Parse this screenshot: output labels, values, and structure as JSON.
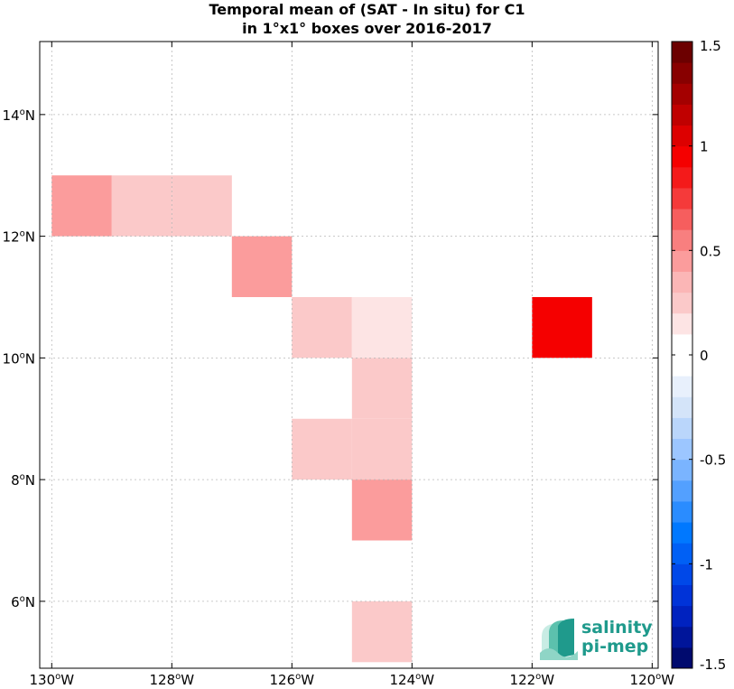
{
  "chart_data": {
    "type": "heatmap",
    "title_line1": "Temporal mean of (SAT - In situ) for C1",
    "title_line2": "in 1°x1° boxes over 2016-2017",
    "xlim": [
      -130.2,
      -119.9
    ],
    "ylim": [
      4.9,
      15.2
    ],
    "x_ticks": [
      {
        "value": -130,
        "deg": "130",
        "unit": "W"
      },
      {
        "value": -128,
        "deg": "128",
        "unit": "W"
      },
      {
        "value": -126,
        "deg": "126",
        "unit": "W"
      },
      {
        "value": -124,
        "deg": "124",
        "unit": "W"
      },
      {
        "value": -122,
        "deg": "122",
        "unit": "W"
      },
      {
        "value": -120,
        "deg": "120",
        "unit": "W"
      }
    ],
    "y_ticks": [
      {
        "value": 6,
        "deg": "6",
        "unit": "N"
      },
      {
        "value": 8,
        "deg": "8",
        "unit": "N"
      },
      {
        "value": 10,
        "deg": "10",
        "unit": "N"
      },
      {
        "value": 12,
        "deg": "12",
        "unit": "N"
      },
      {
        "value": 14,
        "deg": "14",
        "unit": "N"
      }
    ],
    "grid": true,
    "cells": [
      {
        "lon": -130,
        "lat": 12,
        "value": 0.4
      },
      {
        "lon": -129,
        "lat": 12,
        "value": 0.25
      },
      {
        "lon": -128,
        "lat": 12,
        "value": 0.25
      },
      {
        "lon": -127,
        "lat": 11,
        "value": 0.4
      },
      {
        "lon": -126,
        "lat": 10,
        "value": 0.25
      },
      {
        "lon": -125,
        "lat": 10,
        "value": 0.15
      },
      {
        "lon": -125,
        "lat": 9,
        "value": 0.25
      },
      {
        "lon": -126,
        "lat": 8,
        "value": 0.25
      },
      {
        "lon": -125,
        "lat": 8,
        "value": 0.25
      },
      {
        "lon": -125,
        "lat": 7,
        "value": 0.4
      },
      {
        "lon": -125,
        "lat": 5,
        "value": 0.25
      },
      {
        "lon": -122,
        "lat": 10,
        "value": 0.95
      }
    ],
    "colorbar": {
      "range": [
        -1.5,
        1.5
      ],
      "levels": 30,
      "ticks": [
        {
          "value": 1.5,
          "label": "1.5"
        },
        {
          "value": 1,
          "label": "1"
        },
        {
          "value": 0.5,
          "label": "0.5"
        },
        {
          "value": 0,
          "label": "0"
        },
        {
          "value": -0.5,
          "label": "-0.5"
        },
        {
          "value": -1,
          "label": "-1"
        },
        {
          "value": -1.5,
          "label": "-1.5"
        }
      ],
      "colors": [
        "#000a6e",
        "#00159a",
        "#0022bf",
        "#0033d8",
        "#0048e8",
        "#0060f5",
        "#0078ff",
        "#2a8cff",
        "#53a0ff",
        "#7ab4ff",
        "#9cc6ff",
        "#bad6fb",
        "#d4e4f9",
        "#e8f0fc",
        "#ffffff",
        "#ffffff",
        "#fde4e4",
        "#fbc9c9",
        "#fbb6b6",
        "#fb9c9c",
        "#f87f7f",
        "#f65e5e",
        "#f53a3a",
        "#f41a1a",
        "#f50000",
        "#dd0000",
        "#c00000",
        "#a40000",
        "#880000",
        "#6c0000"
      ]
    }
  },
  "logo": {
    "line1": "salinity",
    "line2": "pi-mep",
    "color": "#1f9a8c"
  }
}
